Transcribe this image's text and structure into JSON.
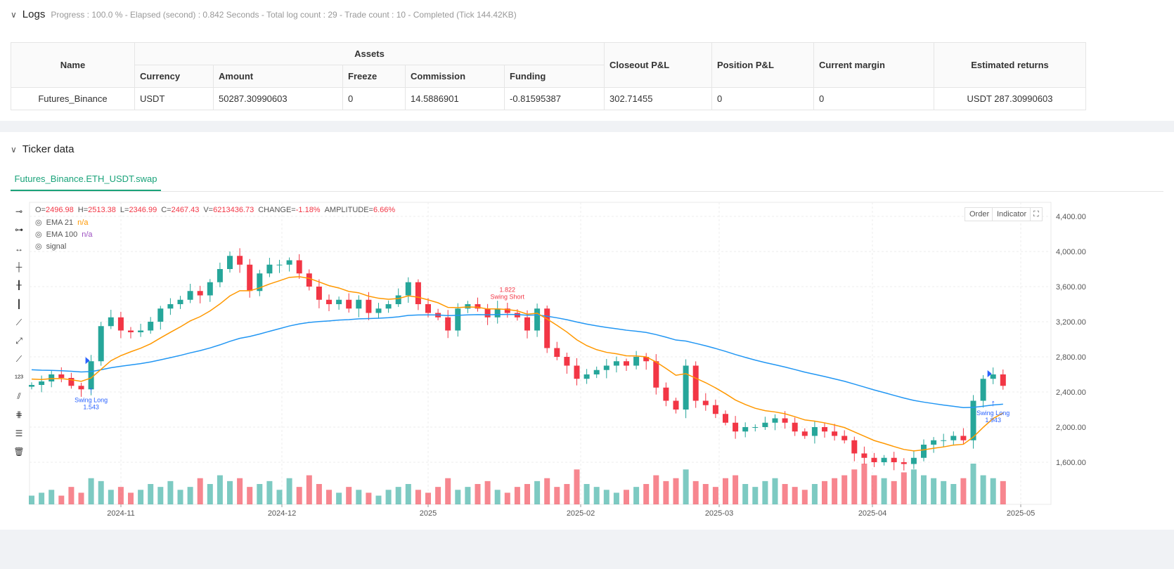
{
  "logs": {
    "title": "Logs",
    "summary": "Progress : 100.0 % - Elapsed (second) : 0.842  Seconds - Total log count : 29 - Trade count : 10 - Completed (Tick 144.42KB)",
    "headers": {
      "name": "Name",
      "assets": "Assets",
      "currency": "Currency",
      "amount": "Amount",
      "freeze": "Freeze",
      "commission": "Commission",
      "funding": "Funding",
      "closeout": "Closeout P&L",
      "position": "Position P&L",
      "margin": "Current margin",
      "returns": "Estimated returns"
    },
    "row": {
      "name": "Futures_Binance",
      "currency": "USDT",
      "amount": "50287.30990603",
      "freeze": "0",
      "commission": "14.5886901",
      "funding": "-0.81595387",
      "closeout": "302.71455",
      "position": "0",
      "margin": "0",
      "returns": "USDT 287.30990603"
    }
  },
  "ticker": {
    "title": "Ticker data",
    "tab": "Futures_Binance.ETH_USDT.swap",
    "ohlc": {
      "o_label": "O=",
      "o": "2496.98",
      "h_label": "H=",
      "h": "2513.38",
      "l_label": "L=",
      "l": "2346.99",
      "c_label": "C=",
      "c": "2467.43",
      "v_label": "V=",
      "v": "6213436.73",
      "change_label": "CHANGE=",
      "change": "-1.18%",
      "amp_label": "AMPLITUDE=",
      "amp": "6.66%"
    },
    "indicators": [
      {
        "name": "EMA 21",
        "value": "n/a",
        "color": "#ff9800"
      },
      {
        "name": "EMA 100",
        "value": "n/a",
        "color": "#2196f3"
      },
      {
        "name": "signal",
        "value": ""
      }
    ],
    "buttons": {
      "order": "Order",
      "indicator": "Indicator"
    }
  },
  "chart_data": {
    "type": "candlestick",
    "colors": {
      "up": "#26a69a",
      "down": "#f23645",
      "ema21": "#ff9800",
      "ema100": "#2196f3",
      "signal": "#2962ff"
    },
    "ylim": [
      1300,
      4550
    ],
    "yticks": [
      "4,400.00",
      "4,000.00",
      "3,600.00",
      "3,200.00",
      "2,800.00",
      "2,400.00",
      "2,000.00",
      "1,600.00"
    ],
    "ytick_values": [
      4400,
      4000,
      3600,
      3200,
      2800,
      2400,
      2000,
      1600
    ],
    "xticks": [
      "2024-11",
      "2024-12",
      "2025",
      "2025-02",
      "2025-03",
      "2025-04",
      "2025-05"
    ],
    "closes": [
      2480,
      2520,
      2600,
      2560,
      2470,
      2430,
      2750,
      3150,
      3250,
      3100,
      3080,
      3100,
      3200,
      3350,
      3400,
      3450,
      3550,
      3500,
      3650,
      3800,
      3950,
      3850,
      3550,
      3750,
      3850,
      3850,
      3900,
      3750,
      3600,
      3450,
      3400,
      3450,
      3350,
      3450,
      3300,
      3350,
      3400,
      3500,
      3650,
      3400,
      3300,
      3250,
      3100,
      3350,
      3400,
      3350,
      3250,
      3350,
      3300,
      3250,
      3100,
      3350,
      2900,
      2800,
      2700,
      2550,
      2600,
      2650,
      2700,
      2750,
      2700,
      2800,
      2750,
      2450,
      2300,
      2200,
      2700,
      2300,
      2250,
      2150,
      2050,
      1950,
      2000,
      2000,
      2050,
      2100,
      2050,
      1950,
      1900,
      2000,
      1950,
      1900,
      1850,
      1700,
      1650,
      1600,
      1650,
      1600,
      1580,
      1650,
      1800,
      1850,
      1850,
      1900,
      1850,
      2300,
      2550,
      2600,
      2470
    ],
    "volumes": [
      3,
      4,
      5,
      3,
      6,
      4,
      9,
      8,
      5,
      6,
      4,
      5,
      7,
      6,
      8,
      5,
      6,
      9,
      7,
      10,
      8,
      9,
      6,
      7,
      8,
      5,
      9,
      6,
      10,
      7,
      5,
      4,
      6,
      5,
      4,
      3,
      5,
      6,
      7,
      5,
      4,
      6,
      9,
      5,
      6,
      7,
      8,
      5,
      4,
      6,
      7,
      8,
      9,
      6,
      7,
      12,
      7,
      6,
      5,
      4,
      5,
      6,
      7,
      10,
      8,
      9,
      12,
      8,
      7,
      6,
      9,
      10,
      7,
      6,
      8,
      9,
      7,
      6,
      5,
      7,
      8,
      9,
      10,
      12,
      14,
      10,
      9,
      8,
      11,
      12,
      10,
      9,
      8,
      7,
      9,
      14,
      10,
      9,
      8
    ],
    "signals": [
      {
        "label": "Swing Long",
        "value": "1.543",
        "index": 6,
        "side": "long"
      },
      {
        "label": "Swing Short",
        "value": "1.822",
        "index": 48,
        "side": "short"
      },
      {
        "label": "Swing Long",
        "value": "1.943",
        "index": 97,
        "side": "long"
      }
    ]
  }
}
